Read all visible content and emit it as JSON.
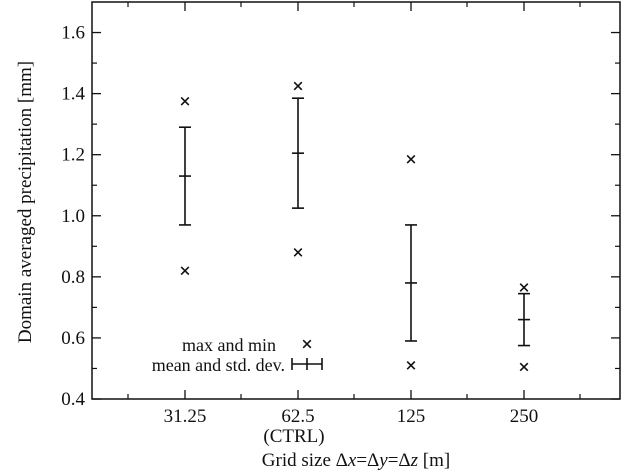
{
  "chart_data": {
    "type": "scatter",
    "title": "",
    "xlabel_parts": [
      "Grid size Δ",
      "x",
      "=Δ",
      "y",
      "=Δ",
      "z",
      " [m]"
    ],
    "ylabel": "Domain averaged precipitation [mm]",
    "categories": [
      "31.25",
      "62.5",
      "125",
      "250"
    ],
    "category_sublabel": {
      "index": 1,
      "text": "(CTRL)"
    },
    "ylim": [
      0.4,
      1.7
    ],
    "yticks": [
      "0.4",
      "0.6",
      "0.8",
      "1.0",
      "1.2",
      "1.4",
      "1.6"
    ],
    "grid": false,
    "series": [
      {
        "name": "max and min",
        "marker": "x",
        "max": [
          1.375,
          1.425,
          1.185,
          0.765
        ],
        "min": [
          0.82,
          0.88,
          0.51,
          0.505
        ]
      },
      {
        "name": "mean and std. dev.",
        "marker": "errorbar",
        "mean": [
          1.13,
          1.205,
          0.78,
          0.66
        ],
        "std": [
          0.16,
          0.18,
          0.19,
          0.085
        ]
      }
    ],
    "legend_position": "bottom-left"
  }
}
